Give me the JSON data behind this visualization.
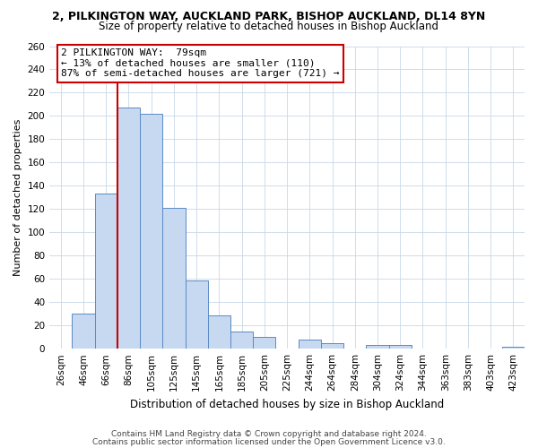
{
  "title": "2, PILKINGTON WAY, AUCKLAND PARK, BISHOP AUCKLAND, DL14 8YN",
  "subtitle": "Size of property relative to detached houses in Bishop Auckland",
  "xlabel": "Distribution of detached houses by size in Bishop Auckland",
  "ylabel": "Number of detached properties",
  "bar_labels": [
    "26sqm",
    "46sqm",
    "66sqm",
    "86sqm",
    "105sqm",
    "125sqm",
    "145sqm",
    "165sqm",
    "185sqm",
    "205sqm",
    "225sqm",
    "244sqm",
    "264sqm",
    "284sqm",
    "304sqm",
    "324sqm",
    "344sqm",
    "363sqm",
    "383sqm",
    "403sqm",
    "423sqm"
  ],
  "bar_values": [
    0,
    30,
    133,
    207,
    202,
    121,
    59,
    29,
    15,
    10,
    0,
    8,
    5,
    0,
    3,
    3,
    0,
    0,
    0,
    0,
    2
  ],
  "bar_color": "#c6d9f1",
  "bar_edge_color": "#5a8ac6",
  "ylim": [
    0,
    260
  ],
  "yticks": [
    0,
    20,
    40,
    60,
    80,
    100,
    120,
    140,
    160,
    180,
    200,
    220,
    240,
    260
  ],
  "vline_x_index": 2.5,
  "vline_color": "#cc0000",
  "annotation_title": "2 PILKINGTON WAY:  79sqm",
  "annotation_line2": "← 13% of detached houses are smaller (110)",
  "annotation_line3": "87% of semi-detached houses are larger (721) →",
  "annotation_box_color": "#ffffff",
  "annotation_box_edge_color": "#cc0000",
  "footer_line1": "Contains HM Land Registry data © Crown copyright and database right 2024.",
  "footer_line2": "Contains public sector information licensed under the Open Government Licence v3.0.",
  "bg_color": "#ffffff",
  "grid_color": "#c8d8e8",
  "title_fontsize": 9,
  "subtitle_fontsize": 8.5,
  "ylabel_fontsize": 8,
  "xlabel_fontsize": 8.5,
  "tick_fontsize": 7.5,
  "annot_fontsize": 8,
  "footer_fontsize": 6.5
}
